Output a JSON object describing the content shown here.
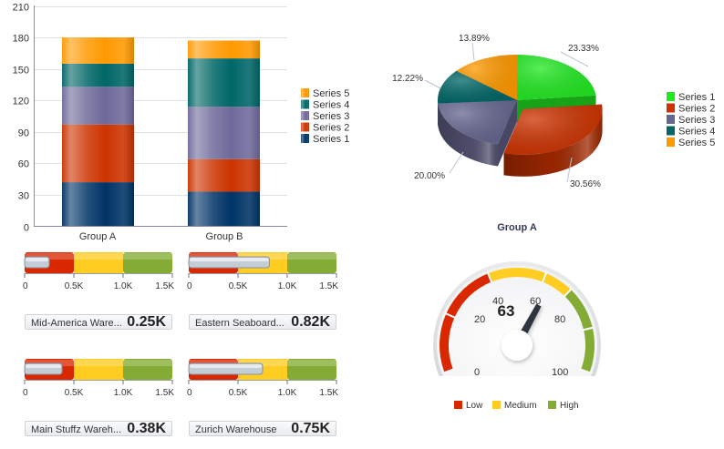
{
  "chart_data": [
    {
      "type": "bar",
      "stacked": true,
      "categories": [
        "Group A",
        "Group B"
      ],
      "series": [
        {
          "name": "Series 1",
          "values": [
            42,
            33
          ],
          "color": "#003366"
        },
        {
          "name": "Series 2",
          "values": [
            55,
            31
          ],
          "color": "#cc3300"
        },
        {
          "name": "Series 3",
          "values": [
            36,
            50
          ],
          "color": "#6d6a9a"
        },
        {
          "name": "Series 4",
          "values": [
            22,
            46
          ],
          "color": "#006666"
        },
        {
          "name": "Series 5",
          "values": [
            25,
            17
          ],
          "color": "#ff9900"
        }
      ],
      "ylim": [
        0,
        210
      ],
      "yticks": [
        "0",
        "30",
        "60",
        "90",
        "120",
        "150",
        "180",
        "210"
      ],
      "grid": true,
      "legend": "right"
    },
    {
      "type": "pie",
      "title": "Group A",
      "slices": [
        {
          "name": "Series 1",
          "value": 42,
          "label": "23.33%",
          "color": "#22e822"
        },
        {
          "name": "Series 2",
          "value": 55,
          "label": "30.56%",
          "color": "#cc3300",
          "exploded": true
        },
        {
          "name": "Series 3",
          "value": 36,
          "label": "20.00%",
          "color": "#66668f"
        },
        {
          "name": "Series 4",
          "value": 22,
          "label": "12.22%",
          "color": "#006666"
        },
        {
          "name": "Series 5",
          "value": 25,
          "label": "13.89%",
          "color": "#ff9900"
        }
      ],
      "legend": [
        "Series 1",
        "Series 2",
        "Series 3",
        "Series 4",
        "Series 5"
      ]
    },
    {
      "type": "bullet-gauges",
      "range": [
        0,
        1500
      ],
      "bands": [
        {
          "to": 500,
          "color": "#d92800"
        },
        {
          "to": 1000,
          "color": "#ffcc22"
        },
        {
          "to": 1500,
          "color": "#84ac34"
        }
      ],
      "ticks": [
        "0",
        "0.5K",
        "1.0K",
        "1.5K"
      ],
      "gauges": [
        {
          "name": "Mid-America Ware...",
          "value": 250,
          "display": "0.25K"
        },
        {
          "name": "Eastern Seaboard...",
          "value": 820,
          "display": "0.82K"
        },
        {
          "name": "Main Stuffz Wareh...",
          "value": 380,
          "display": "0.38K"
        },
        {
          "name": "Zurich Warehouse",
          "value": 750,
          "display": "0.75K"
        }
      ]
    },
    {
      "type": "dial-gauge",
      "value": 63,
      "value_label": "63",
      "range": [
        0,
        100
      ],
      "ticks": [
        "0",
        "20",
        "40",
        "60",
        "80",
        "100"
      ],
      "thresholds": [
        {
          "name": "Low",
          "from": 0,
          "to": 40,
          "color": "#d92800"
        },
        {
          "name": "Medium",
          "from": 40,
          "to": 70,
          "color": "#ffcc22"
        },
        {
          "name": "High",
          "from": 70,
          "to": 100,
          "color": "#84ac34"
        }
      ],
      "legend": [
        "Low",
        "Medium",
        "High"
      ]
    }
  ]
}
